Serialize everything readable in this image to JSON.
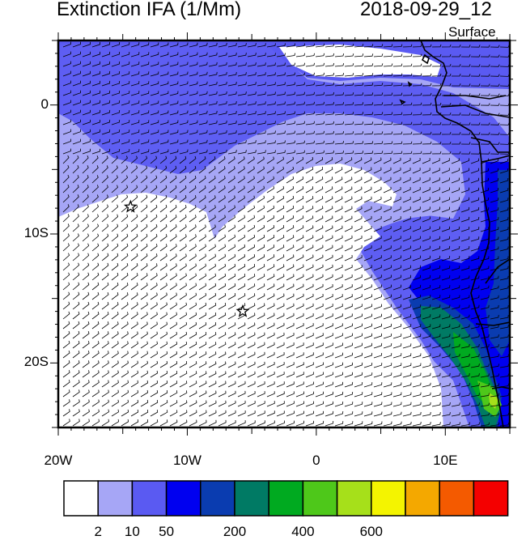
{
  "title": "Extinction IFA (1/Mm)",
  "datetime": "2018-09-29_12",
  "level": "Surface",
  "map": {
    "lon_range": [
      -20,
      15
    ],
    "lat_range": [
      -25,
      5
    ],
    "lat_ticks": [
      {
        "value": 0,
        "label": "0"
      },
      {
        "value": -10,
        "label": "10S"
      },
      {
        "value": -20,
        "label": "20S"
      }
    ],
    "lon_ticks": [
      {
        "value": -20,
        "label": "20W"
      },
      {
        "value": -10,
        "label": "10W"
      },
      {
        "value": 0,
        "label": "0"
      },
      {
        "value": 10,
        "label": "10E"
      }
    ],
    "stations": [
      {
        "name": "star-1",
        "lon": -14.4,
        "lat": -7.9
      },
      {
        "name": "star-2",
        "lon": -5.7,
        "lat": -16.0
      }
    ]
  },
  "colorbar": {
    "colors": [
      "#ffffff",
      "#a6a6f6",
      "#5a5af2",
      "#0000f0",
      "#0a3cb0",
      "#007a64",
      "#00aa20",
      "#4ec81a",
      "#a6e01a",
      "#f4f400",
      "#f4a800",
      "#f45a00",
      "#f40000"
    ],
    "labels": [
      {
        "index": 1,
        "text": "2"
      },
      {
        "index": 2,
        "text": "10"
      },
      {
        "index": 3,
        "text": "50"
      },
      {
        "index": 5,
        "text": "200"
      },
      {
        "index": 7,
        "text": "400"
      },
      {
        "index": 9,
        "text": "600"
      }
    ]
  }
}
